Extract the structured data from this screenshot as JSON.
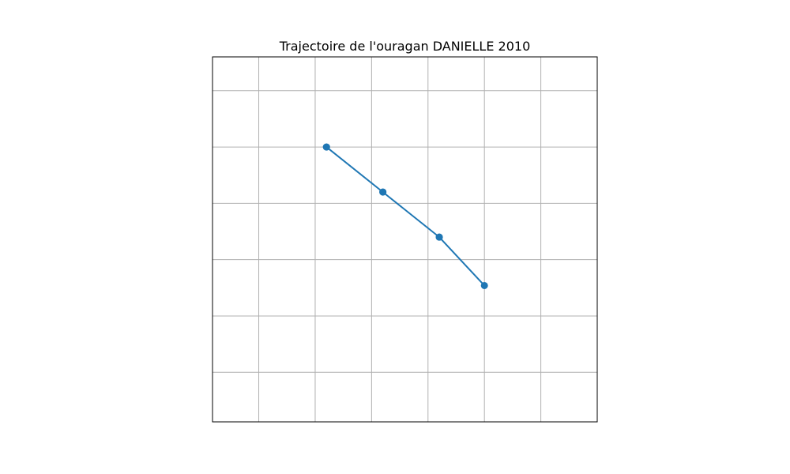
{
  "chart_data": {
    "type": "line",
    "title": "Trajectoire de l'ouragan DANIELLE 2010",
    "xlabel": "",
    "ylabel": "",
    "grid": true,
    "x_gridlines": [
      -55.0,
      -54.5,
      -54.0,
      -53.5,
      -53.0,
      -52.5
    ],
    "y_gridlines": [
      24.0,
      24.5,
      25.0,
      25.5,
      26.0,
      26.5
    ],
    "xlim": [
      -55.41,
      -52.0
    ],
    "ylim": [
      23.56,
      26.8
    ],
    "series": [
      {
        "name": "",
        "color": "#1f77b4",
        "x": [
          -54.4,
          -53.9,
          -53.4,
          -53.0,
          -53.4,
          -53.9,
          -54.4
        ],
        "y": [
          26.0,
          25.6,
          25.2,
          24.77,
          25.2,
          25.6,
          26.0
        ]
      }
    ]
  }
}
